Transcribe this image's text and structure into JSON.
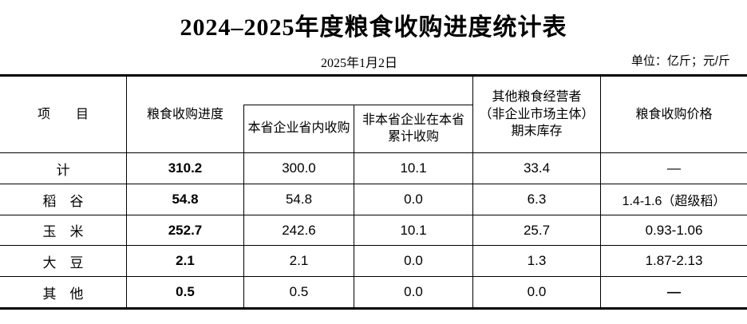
{
  "title": "2024–2025年度粮食收购进度统计表",
  "meta": {
    "date": "2025年1月2日",
    "unit_note": "单位：亿斤；元/斤"
  },
  "table": {
    "header": {
      "item": "项　　目",
      "progress": "粮食收购进度",
      "local": "本省企业省内收购",
      "nonlocal": "非本省企业在本省\n累计收购",
      "stock": "其他粮食经营者\n（非企业市场主体）\n期末库存",
      "price": "粮食收购价格"
    },
    "rows": [
      {
        "item": "计",
        "progress": "310.2",
        "local": "300.0",
        "nonlocal": "10.1",
        "stock": "33.4",
        "price": "—"
      },
      {
        "item": "稻　谷",
        "progress": "54.8",
        "local": "54.8",
        "nonlocal": "0.0",
        "stock": "6.3",
        "price": "1.4-1.6（超级稻）"
      },
      {
        "item": "玉　米",
        "progress": "252.7",
        "local": "242.6",
        "nonlocal": "10.1",
        "stock": "25.7",
        "price": "0.93-1.06"
      },
      {
        "item": "大　豆",
        "progress": "2.1",
        "local": "2.1",
        "nonlocal": "0.0",
        "stock": "1.3",
        "price": "1.87-2.13"
      },
      {
        "item": "其　他",
        "progress": "0.5",
        "local": "0.5",
        "nonlocal": "0.0",
        "stock": "0.0",
        "price": "—"
      }
    ]
  }
}
